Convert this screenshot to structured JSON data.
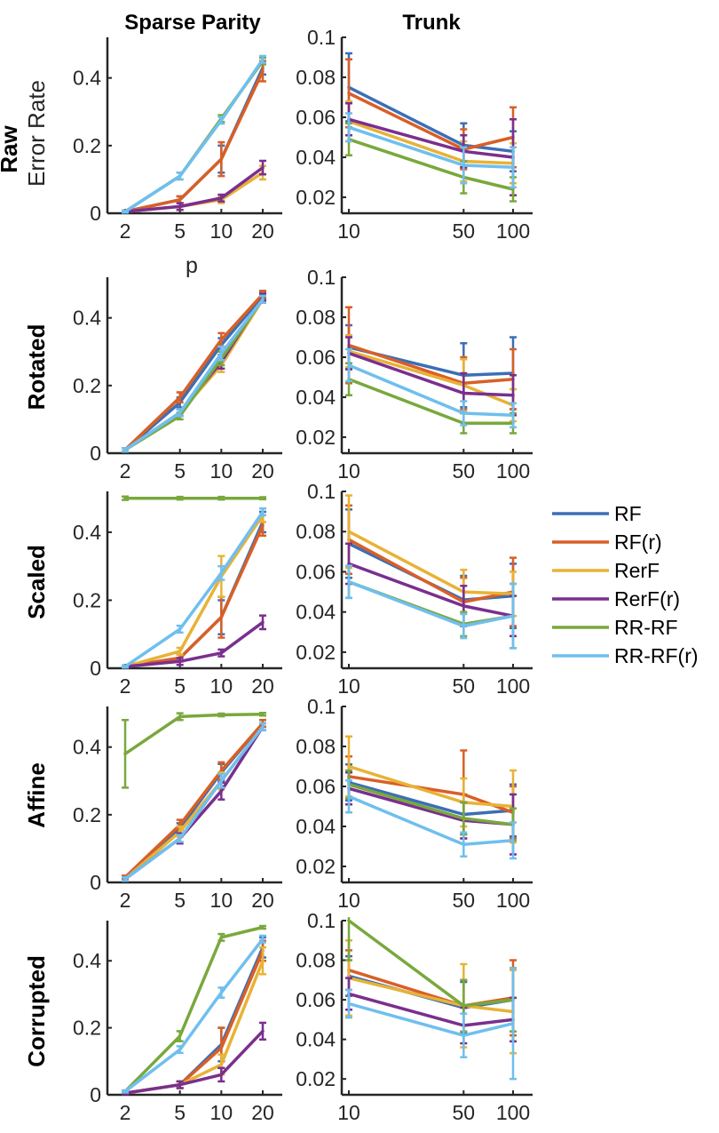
{
  "figure": {
    "columns": [
      "Sparse Parity",
      "Trunk"
    ],
    "rows": [
      "Raw",
      "Rotated",
      "Scaled",
      "Affine",
      "Corrupted"
    ],
    "row_sublabel": "Error Rate",
    "xlabel_first": "p"
  },
  "legend": {
    "entries": [
      {
        "name": "RF",
        "color": "#3b6fb6"
      },
      {
        "name": "RF(r)",
        "color": "#d95f26"
      },
      {
        "name": "RerF",
        "color": "#e8b236"
      },
      {
        "name": "RerF(r)",
        "color": "#7a2f8e"
      },
      {
        "name": "RR-RF",
        "color": "#79a83c"
      },
      {
        "name": "RR-RF(r)",
        "color": "#6fbfee"
      }
    ],
    "placement": "right"
  },
  "chart_data": [
    {
      "type": "line",
      "panel": "sparse-raw",
      "title": "Sparse Parity",
      "row": "Raw",
      "xscale": "log",
      "x": [
        2,
        5,
        10,
        20
      ],
      "xticks": [
        "2",
        "5",
        "10",
        "20"
      ],
      "ylim": [
        0,
        0.52
      ],
      "yticks": [
        0,
        0.2,
        0.4
      ],
      "series": [
        {
          "name": "RF",
          "values": [
            0.005,
            0.04,
            0.16,
            0.43
          ],
          "err": [
            0.003,
            0.01,
            0.04,
            0.02
          ]
        },
        {
          "name": "RF(r)",
          "values": [
            0.005,
            0.04,
            0.16,
            0.42
          ],
          "err": [
            0.003,
            0.01,
            0.05,
            0.03
          ]
        },
        {
          "name": "RerF",
          "values": [
            0.005,
            0.02,
            0.04,
            0.12
          ],
          "err": [
            0.003,
            0.01,
            0.01,
            0.02
          ]
        },
        {
          "name": "RerF(r)",
          "values": [
            0.005,
            0.02,
            0.045,
            0.135
          ],
          "err": [
            0.003,
            0.01,
            0.01,
            0.02
          ]
        },
        {
          "name": "RR-RF",
          "values": [
            0.005,
            0.11,
            0.28,
            0.45
          ],
          "err": [
            0.003,
            0.01,
            0.01,
            0.01
          ]
        },
        {
          "name": "RR-RF(r)",
          "values": [
            0.005,
            0.11,
            0.275,
            0.455
          ],
          "err": [
            0.003,
            0.01,
            0.01,
            0.01
          ]
        }
      ]
    },
    {
      "type": "line",
      "panel": "trunk-raw",
      "title": "Trunk",
      "row": "Raw",
      "xscale": "log",
      "x": [
        10,
        50,
        100
      ],
      "xticks": [
        "10",
        "50",
        "100"
      ],
      "ylim": [
        0.012,
        0.1
      ],
      "yticks": [
        0.02,
        0.04,
        0.06,
        0.08,
        0.1
      ],
      "series": [
        {
          "name": "RF",
          "values": [
            0.075,
            0.046,
            0.043
          ],
          "err": [
            0.017,
            0.011,
            0.01
          ]
        },
        {
          "name": "RF(r)",
          "values": [
            0.072,
            0.044,
            0.05
          ],
          "err": [
            0.017,
            0.01,
            0.015
          ]
        },
        {
          "name": "RerF",
          "values": [
            0.058,
            0.038,
            0.037
          ],
          "err": [
            0.01,
            0.01,
            0.01
          ]
        },
        {
          "name": "RerF(r)",
          "values": [
            0.059,
            0.043,
            0.04
          ],
          "err": [
            0.008,
            0.008,
            0.019
          ]
        },
        {
          "name": "RR-RF",
          "values": [
            0.049,
            0.03,
            0.024
          ],
          "err": [
            0.008,
            0.008,
            0.006
          ]
        },
        {
          "name": "RR-RF(r)",
          "values": [
            0.055,
            0.036,
            0.035
          ],
          "err": [
            0.007,
            0.009,
            0.01
          ]
        }
      ]
    },
    {
      "type": "line",
      "panel": "sparse-rotated",
      "row": "Rotated",
      "xscale": "log",
      "x": [
        2,
        5,
        10,
        20
      ],
      "xticks": [
        "2",
        "5",
        "10",
        "20"
      ],
      "ylim": [
        0,
        0.52
      ],
      "yticks": [
        0,
        0.2,
        0.4
      ],
      "series": [
        {
          "name": "RF",
          "values": [
            0.01,
            0.15,
            0.32,
            0.465
          ],
          "err": [
            0.005,
            0.015,
            0.02,
            0.01
          ]
        },
        {
          "name": "RF(r)",
          "values": [
            0.01,
            0.165,
            0.335,
            0.47
          ],
          "err": [
            0.005,
            0.015,
            0.02,
            0.01
          ]
        },
        {
          "name": "RerF",
          "values": [
            0.01,
            0.12,
            0.26,
            0.455
          ],
          "err": [
            0.005,
            0.01,
            0.02,
            0.01
          ]
        },
        {
          "name": "RerF(r)",
          "values": [
            0.01,
            0.12,
            0.27,
            0.46
          ],
          "err": [
            0.005,
            0.01,
            0.02,
            0.01
          ]
        },
        {
          "name": "RR-RF",
          "values": [
            0.01,
            0.11,
            0.28,
            0.455
          ],
          "err": [
            0.005,
            0.01,
            0.02,
            0.01
          ]
        },
        {
          "name": "RR-RF(r)",
          "values": [
            0.01,
            0.12,
            0.295,
            0.455
          ],
          "err": [
            0.005,
            0.01,
            0.02,
            0.01
          ]
        }
      ]
    },
    {
      "type": "line",
      "panel": "trunk-rotated",
      "row": "Rotated",
      "xscale": "log",
      "x": [
        10,
        50,
        100
      ],
      "xticks": [
        "10",
        "50",
        "100"
      ],
      "ylim": [
        0.012,
        0.1
      ],
      "yticks": [
        0.02,
        0.04,
        0.06,
        0.08,
        0.1
      ],
      "series": [
        {
          "name": "RF",
          "values": [
            0.065,
            0.051,
            0.052
          ],
          "err": [
            0.011,
            0.016,
            0.018
          ]
        },
        {
          "name": "RF(r)",
          "values": [
            0.066,
            0.047,
            0.049
          ],
          "err": [
            0.019,
            0.013,
            0.015
          ]
        },
        {
          "name": "RerF",
          "values": [
            0.063,
            0.046,
            0.036
          ],
          "err": [
            0.008,
            0.013,
            0.008
          ]
        },
        {
          "name": "RerF(r)",
          "values": [
            0.062,
            0.042,
            0.041
          ],
          "err": [
            0.008,
            0.01,
            0.01
          ]
        },
        {
          "name": "RR-RF",
          "values": [
            0.049,
            0.027,
            0.027
          ],
          "err": [
            0.008,
            0.005,
            0.005
          ]
        },
        {
          "name": "RR-RF(r)",
          "values": [
            0.056,
            0.032,
            0.031
          ],
          "err": [
            0.008,
            0.006,
            0.006
          ]
        }
      ]
    },
    {
      "type": "line",
      "panel": "sparse-scaled",
      "row": "Scaled",
      "xscale": "log",
      "x": [
        2,
        5,
        10,
        20
      ],
      "xticks": [
        "2",
        "5",
        "10",
        "20"
      ],
      "ylim": [
        0,
        0.52
      ],
      "yticks": [
        0,
        0.2,
        0.4
      ],
      "series": [
        {
          "name": "RF",
          "values": [
            0.005,
            0.03,
            0.15,
            0.43
          ],
          "err": [
            0.003,
            0.01,
            0.05,
            0.03
          ]
        },
        {
          "name": "RF(r)",
          "values": [
            0.005,
            0.03,
            0.15,
            0.42
          ],
          "err": [
            0.003,
            0.01,
            0.06,
            0.03
          ]
        },
        {
          "name": "RerF",
          "values": [
            0.005,
            0.05,
            0.27,
            0.45
          ],
          "err": [
            0.003,
            0.01,
            0.06,
            0.02
          ]
        },
        {
          "name": "RerF(r)",
          "values": [
            0.005,
            0.02,
            0.045,
            0.135
          ],
          "err": [
            0.003,
            0.01,
            0.01,
            0.02
          ]
        },
        {
          "name": "RR-RF",
          "values": [
            0.5,
            0.5,
            0.5,
            0.5
          ],
          "err": [
            0.005,
            0.004,
            0.004,
            0.003
          ]
        },
        {
          "name": "RR-RF(r)",
          "values": [
            0.005,
            0.115,
            0.28,
            0.46
          ],
          "err": [
            0.003,
            0.01,
            0.02,
            0.01
          ]
        }
      ]
    },
    {
      "type": "line",
      "panel": "trunk-scaled",
      "row": "Scaled",
      "xscale": "log",
      "x": [
        10,
        50,
        100
      ],
      "xticks": [
        "10",
        "50",
        "100"
      ],
      "ylim": [
        0.012,
        0.1
      ],
      "yticks": [
        0.02,
        0.04,
        0.06,
        0.08,
        0.1
      ],
      "series": [
        {
          "name": "RF",
          "values": [
            0.074,
            0.046,
            0.048
          ],
          "err": [
            0.017,
            0.012,
            0.016
          ]
        },
        {
          "name": "RF(r)",
          "values": [
            0.076,
            0.045,
            0.05
          ],
          "err": [
            0.017,
            0.012,
            0.017
          ]
        },
        {
          "name": "RerF",
          "values": [
            0.08,
            0.05,
            0.049
          ],
          "err": [
            0.018,
            0.011,
            0.011
          ]
        },
        {
          "name": "RerF(r)",
          "values": [
            0.064,
            0.043,
            0.038
          ],
          "err": [
            0.01,
            0.01,
            0.01
          ]
        },
        {
          "name": "RR-RF",
          "values": [
            0.055,
            0.034,
            0.038
          ],
          "err": [
            0.008,
            0.006,
            0.016
          ]
        },
        {
          "name": "RR-RF(r)",
          "values": [
            0.055,
            0.033,
            0.038
          ],
          "err": [
            0.008,
            0.006,
            0.016
          ]
        }
      ]
    },
    {
      "type": "line",
      "panel": "sparse-affine",
      "row": "Affine",
      "xscale": "log",
      "x": [
        2,
        5,
        10,
        20
      ],
      "xticks": [
        "2",
        "5",
        "10",
        "20"
      ],
      "ylim": [
        0,
        0.52
      ],
      "yticks": [
        0,
        0.2,
        0.4
      ],
      "series": [
        {
          "name": "RF",
          "values": [
            0.01,
            0.16,
            0.325,
            0.47
          ],
          "err": [
            0.005,
            0.015,
            0.025,
            0.01
          ]
        },
        {
          "name": "RF(r)",
          "values": [
            0.015,
            0.17,
            0.33,
            0.47
          ],
          "err": [
            0.005,
            0.015,
            0.025,
            0.01
          ]
        },
        {
          "name": "RerF",
          "values": [
            0.01,
            0.15,
            0.3,
            0.46
          ],
          "err": [
            0.005,
            0.015,
            0.025,
            0.01
          ]
        },
        {
          "name": "RerF(r)",
          "values": [
            0.01,
            0.13,
            0.27,
            0.46
          ],
          "err": [
            0.005,
            0.015,
            0.025,
            0.01
          ]
        },
        {
          "name": "RR-RF",
          "values": [
            0.38,
            0.49,
            0.495,
            0.497
          ],
          "err": [
            0.1,
            0.01,
            0.004,
            0.004
          ]
        },
        {
          "name": "RR-RF(r)",
          "values": [
            0.01,
            0.13,
            0.3,
            0.46
          ],
          "err": [
            0.005,
            0.01,
            0.02,
            0.01
          ]
        }
      ]
    },
    {
      "type": "line",
      "panel": "trunk-affine",
      "row": "Affine",
      "xscale": "log",
      "x": [
        10,
        50,
        100
      ],
      "xticks": [
        "10",
        "50",
        "100"
      ],
      "ylim": [
        0.012,
        0.1
      ],
      "yticks": [
        0.02,
        0.04,
        0.06,
        0.08,
        0.1
      ],
      "series": [
        {
          "name": "RF",
          "values": [
            0.062,
            0.046,
            0.048
          ],
          "err": [
            0.009,
            0.01,
            0.013
          ]
        },
        {
          "name": "RF(r)",
          "values": [
            0.065,
            0.056,
            0.047
          ],
          "err": [
            0.01,
            0.022,
            0.013
          ]
        },
        {
          "name": "RerF",
          "values": [
            0.07,
            0.052,
            0.05
          ],
          "err": [
            0.015,
            0.012,
            0.018
          ]
        },
        {
          "name": "RerF(r)",
          "values": [
            0.059,
            0.043,
            0.041
          ],
          "err": [
            0.008,
            0.009,
            0.015
          ]
        },
        {
          "name": "RR-RF",
          "values": [
            0.061,
            0.044,
            0.041
          ],
          "err": [
            0.007,
            0.008,
            0.008
          ]
        },
        {
          "name": "RR-RF(r)",
          "values": [
            0.055,
            0.031,
            0.033
          ],
          "err": [
            0.008,
            0.006,
            0.009
          ]
        }
      ]
    },
    {
      "type": "line",
      "panel": "sparse-corrupted",
      "row": "Corrupted",
      "xscale": "log",
      "x": [
        2,
        5,
        10,
        20
      ],
      "xticks": [
        "2",
        "5",
        "10",
        "20"
      ],
      "ylim": [
        0,
        0.52
      ],
      "yticks": [
        0,
        0.2,
        0.4
      ],
      "series": [
        {
          "name": "RF",
          "values": [
            0.005,
            0.03,
            0.15,
            0.44
          ],
          "err": [
            0.003,
            0.01,
            0.05,
            0.03
          ]
        },
        {
          "name": "RF(r)",
          "values": [
            0.005,
            0.03,
            0.14,
            0.43
          ],
          "err": [
            0.003,
            0.01,
            0.06,
            0.03
          ]
        },
        {
          "name": "RerF",
          "values": [
            0.005,
            0.03,
            0.09,
            0.4
          ],
          "err": [
            0.003,
            0.01,
            0.03,
            0.04
          ]
        },
        {
          "name": "RerF(r)",
          "values": [
            0.005,
            0.03,
            0.06,
            0.19
          ],
          "err": [
            0.003,
            0.01,
            0.02,
            0.025
          ]
        },
        {
          "name": "RR-RF",
          "values": [
            0.01,
            0.175,
            0.47,
            0.5
          ],
          "err": [
            0.003,
            0.015,
            0.01,
            0.004
          ]
        },
        {
          "name": "RR-RF(r)",
          "values": [
            0.01,
            0.135,
            0.305,
            0.465
          ],
          "err": [
            0.003,
            0.01,
            0.015,
            0.01
          ]
        }
      ]
    },
    {
      "type": "line",
      "panel": "trunk-corrupted",
      "row": "Corrupted",
      "xscale": "log",
      "x": [
        10,
        50,
        100
      ],
      "xticks": [
        "10",
        "50",
        "100"
      ],
      "ylim": [
        0.012,
        0.1
      ],
      "yticks": [
        0.02,
        0.04,
        0.06,
        0.08,
        0.1
      ],
      "series": [
        {
          "name": "RF",
          "values": [
            0.072,
            0.056,
            0.06
          ],
          "err": [
            0.01,
            0.013,
            0.016
          ]
        },
        {
          "name": "RF(r)",
          "values": [
            0.075,
            0.057,
            0.061
          ],
          "err": [
            0.01,
            0.013,
            0.019
          ]
        },
        {
          "name": "RerF",
          "values": [
            0.071,
            0.057,
            0.054
          ],
          "err": [
            0.019,
            0.021,
            0.021
          ]
        },
        {
          "name": "RerF(r)",
          "values": [
            0.063,
            0.047,
            0.05
          ],
          "err": [
            0.008,
            0.009,
            0.011
          ]
        },
        {
          "name": "RR-RF",
          "values": [
            0.1,
            0.057,
            0.06
          ],
          "err": [
            0.02,
            0.013,
            0.016
          ]
        },
        {
          "name": "RR-RF(r)",
          "values": [
            0.058,
            0.042,
            0.048
          ],
          "err": [
            0.007,
            0.011,
            0.028
          ]
        }
      ]
    }
  ]
}
